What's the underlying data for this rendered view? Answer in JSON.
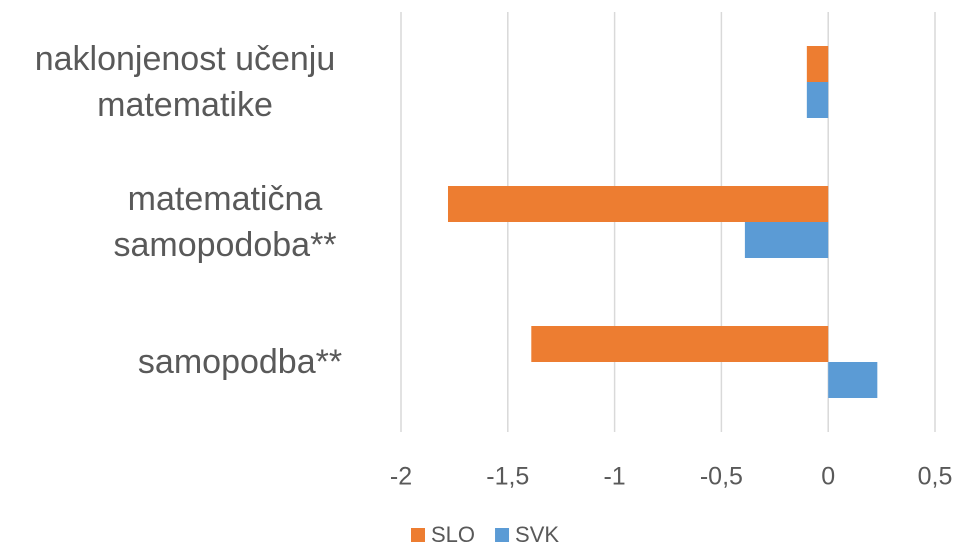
{
  "chart_data": {
    "type": "bar",
    "orientation": "horizontal",
    "categories": [
      "naklonjenost učenju matematike",
      "matematična samopodoba**",
      "samopodba**"
    ],
    "series": [
      {
        "name": "SLO",
        "color": "#ed7d31",
        "values": [
          -0.1,
          -1.78,
          -1.39
        ]
      },
      {
        "name": "SVK",
        "color": "#5b9bd5",
        "values": [
          -0.1,
          -0.39,
          0.23
        ]
      }
    ],
    "xlim": [
      -2,
      0.5
    ],
    "xticks": [
      -2,
      {
        "value": -1.5,
        "label": "-1,5"
      },
      -1,
      {
        "value": -0.5,
        "label": "-0,5"
      },
      0,
      {
        "value": 0.5,
        "label": "0,5"
      }
    ],
    "grid": true,
    "legend": "bottom"
  }
}
